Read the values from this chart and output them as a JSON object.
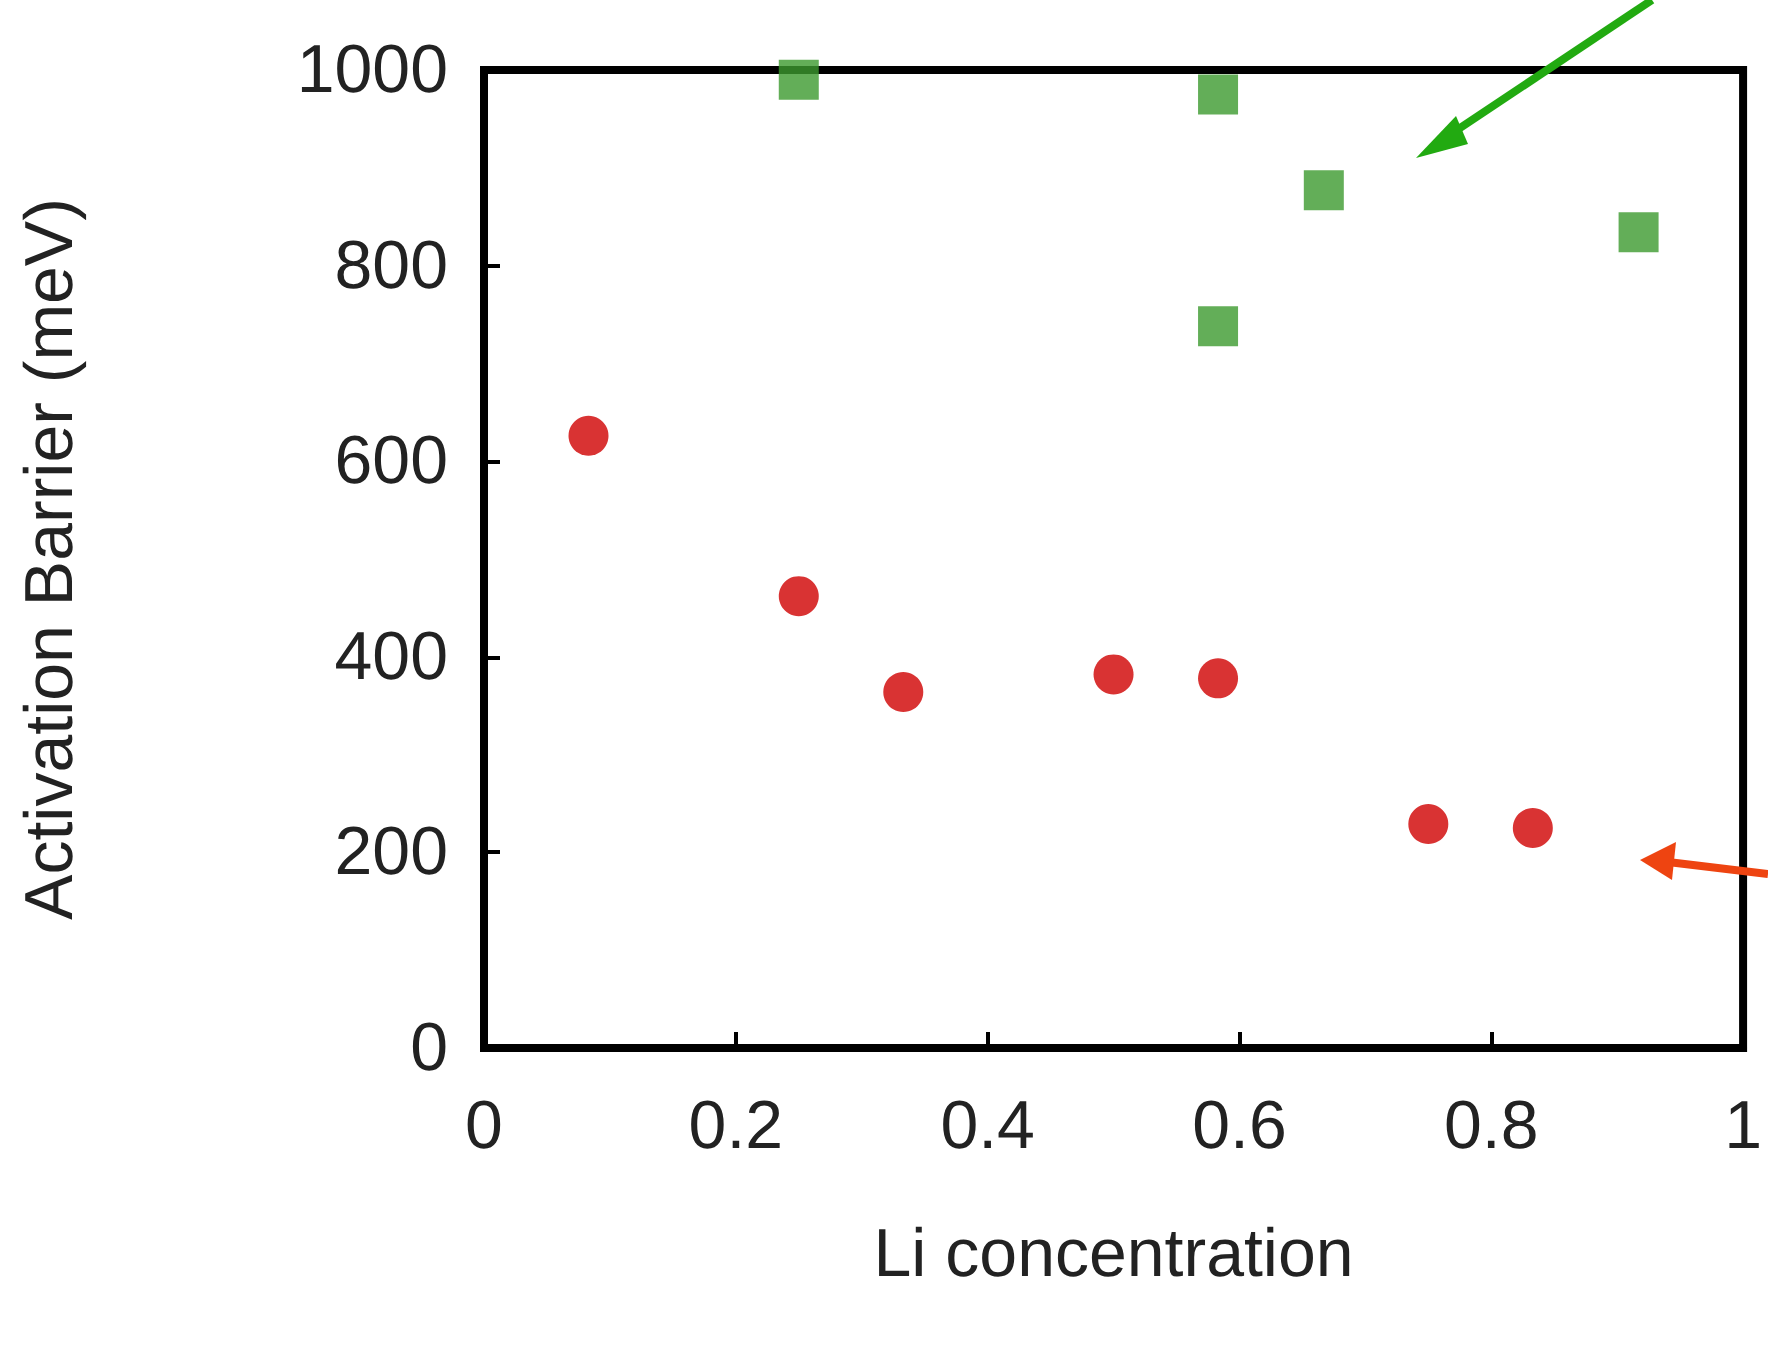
{
  "chart_data": {
    "type": "scatter",
    "xlabel": "Li concentration",
    "ylabel": "Activation Barrier (meV)",
    "xlim": [
      0,
      1
    ],
    "xticks": [
      0,
      0.2,
      0.4,
      0.6,
      0.8,
      1
    ],
    "ylim": [
      0,
      1000
    ],
    "yticks": [
      0,
      200,
      400,
      600,
      800,
      1000
    ],
    "grid": false,
    "series": [
      {
        "color": "#3c9a2e",
        "marker": "square",
        "x": [
          0.25,
          0.583,
          0.667,
          0.583,
          0.917
        ],
        "values": [
          990,
          975,
          877,
          738,
          834
        ]
      },
      {
        "color": "#d00000",
        "marker": "circle",
        "x": [
          0.083,
          0.25,
          0.333,
          0.5,
          0.583,
          0.75,
          0.833
        ],
        "values": [
          626,
          462,
          364,
          382,
          378,
          229,
          225
        ]
      }
    ]
  }
}
